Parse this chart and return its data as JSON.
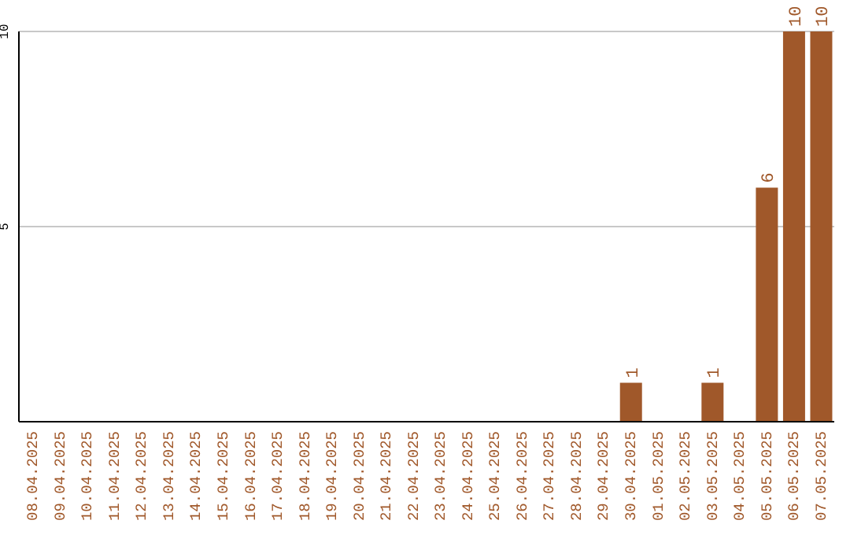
{
  "chart_data": {
    "type": "bar",
    "categories": [
      "08.04.2025",
      "09.04.2025",
      "10.04.2025",
      "11.04.2025",
      "12.04.2025",
      "13.04.2025",
      "14.04.2025",
      "15.04.2025",
      "16.04.2025",
      "17.04.2025",
      "18.04.2025",
      "19.04.2025",
      "20.04.2025",
      "21.04.2025",
      "22.04.2025",
      "23.04.2025",
      "24.04.2025",
      "25.04.2025",
      "26.04.2025",
      "27.04.2025",
      "28.04.2025",
      "29.04.2025",
      "30.04.2025",
      "01.05.2025",
      "02.05.2025",
      "03.05.2025",
      "04.05.2025",
      "05.05.2025",
      "06.05.2025",
      "07.05.2025"
    ],
    "values": [
      0,
      0,
      0,
      0,
      0,
      0,
      0,
      0,
      0,
      0,
      0,
      0,
      0,
      0,
      0,
      0,
      0,
      0,
      0,
      0,
      0,
      0,
      1,
      0,
      0,
      1,
      0,
      6,
      10,
      10
    ],
    "value_labels": [
      null,
      null,
      null,
      null,
      null,
      null,
      null,
      null,
      null,
      null,
      null,
      null,
      null,
      null,
      null,
      null,
      null,
      null,
      null,
      null,
      null,
      null,
      "1",
      null,
      null,
      "1",
      null,
      "6",
      "10",
      "10"
    ],
    "color": "#a0582a",
    "ylim": [
      0,
      10
    ],
    "yticks": [
      5,
      10
    ],
    "grid": "y",
    "legend": false
  }
}
